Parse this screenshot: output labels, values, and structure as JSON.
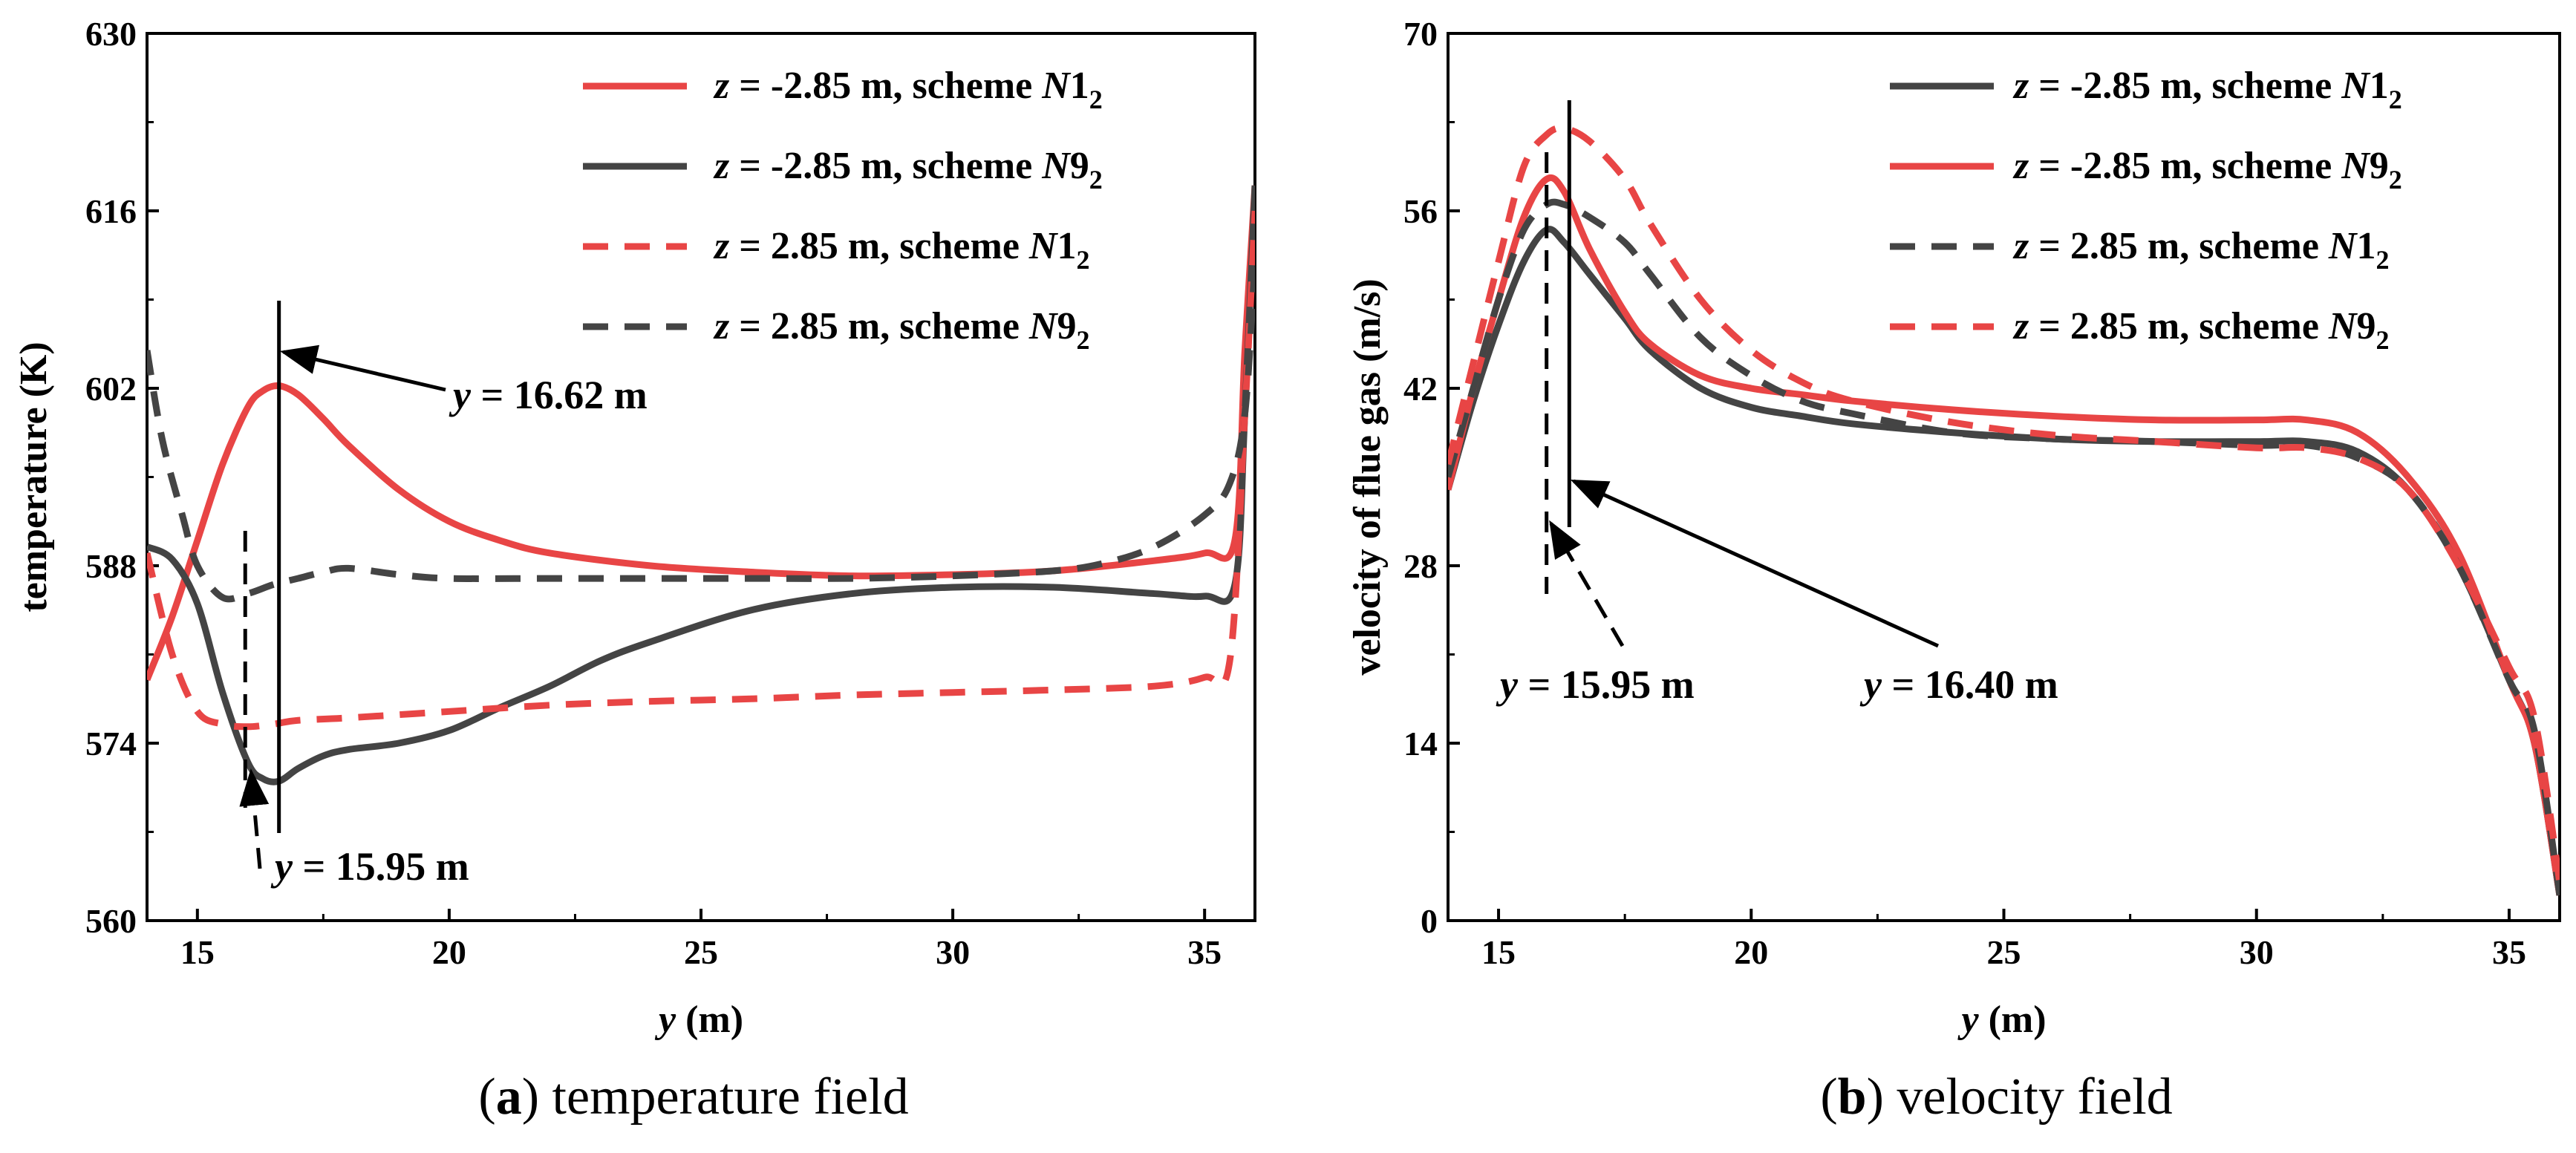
{
  "colors": {
    "red": "#e84545",
    "dark": "#444444",
    "axis": "#000000"
  },
  "chart_data": [
    {
      "type": "line",
      "caption": {
        "letter": "(a)",
        "text": " temperature field"
      },
      "xlabel": {
        "var": "y",
        "unit": "(m)"
      },
      "ylabel": "temperature (K)",
      "xlim": [
        14,
        36
      ],
      "ylim": [
        560,
        630
      ],
      "xticks": [
        "15",
        "20",
        "25",
        "30",
        "35"
      ],
      "yticks": [
        "560",
        "574",
        "588",
        "602",
        "616",
        "630"
      ],
      "series": [
        {
          "name": "z = -2.85 m, scheme N1_2",
          "legend": {
            "var": "z",
            "prefix": " = -2.85 m, scheme ",
            "scheme": "N",
            "num": "1",
            "sub": "2"
          },
          "color": "#e84545",
          "dash": "solid",
          "x": [
            14,
            14.5,
            15,
            15.5,
            16,
            16.3,
            16.62,
            17,
            17.5,
            18,
            19,
            20,
            21,
            22,
            24,
            26,
            28,
            30,
            32,
            34,
            35,
            35.6,
            35.8,
            36
          ],
          "y": [
            579,
            584,
            590,
            596,
            600.5,
            601.8,
            602.2,
            601.5,
            599.6,
            597.5,
            594,
            591.5,
            590,
            589,
            588,
            587.5,
            587.2,
            587.3,
            587.6,
            588.4,
            589,
            590,
            605,
            618
          ]
        },
        {
          "name": "z = -2.85 m, scheme N9_2",
          "legend": {
            "var": "z",
            "prefix": " = -2.85 m, scheme ",
            "scheme": "N",
            "num": "9",
            "sub": "2"
          },
          "color": "#444444",
          "dash": "solid",
          "x": [
            14,
            14.5,
            15,
            15.5,
            16,
            16.3,
            16.62,
            17,
            17.5,
            18,
            19,
            20,
            21,
            22,
            23,
            24,
            26,
            28,
            30,
            32,
            34,
            35,
            35.6,
            35.8,
            36
          ],
          "y": [
            589.5,
            588.5,
            585,
            578,
            572.5,
            571.2,
            571,
            572,
            573,
            573.5,
            574,
            575,
            576.8,
            578.5,
            580.5,
            582,
            584.5,
            585.8,
            586.3,
            586.3,
            585.8,
            585.6,
            586.5,
            600,
            618
          ]
        },
        {
          "name": "z = 2.85 m, scheme N1_2",
          "legend": {
            "var": "z",
            "prefix": " = 2.85 m, scheme ",
            "scheme": "N",
            "num": "1",
            "sub": "2"
          },
          "color": "#e84545",
          "dash": "dashed",
          "x": [
            14,
            14.5,
            15,
            15.5,
            16,
            16.5,
            17,
            18,
            20,
            22,
            24,
            26,
            28,
            30,
            32,
            34,
            35,
            35.5,
            35.8,
            36
          ],
          "y": [
            589,
            581,
            576.5,
            575.5,
            575.3,
            575.5,
            575.8,
            576,
            576.5,
            577,
            577.3,
            577.5,
            577.8,
            578,
            578.2,
            578.5,
            579.2,
            580.5,
            600,
            616
          ]
        },
        {
          "name": "z = 2.85 m, scheme N9_2",
          "legend": {
            "var": "z",
            "prefix": " = 2.85 m, scheme ",
            "scheme": "N",
            "num": "9",
            "sub": "2"
          },
          "color": "#444444",
          "dash": "dashed",
          "x": [
            14,
            14.3,
            14.7,
            15,
            15.5,
            16,
            16.5,
            17,
            17.5,
            18,
            19,
            20,
            22,
            24,
            26,
            28,
            30,
            32,
            33,
            34,
            35,
            35.5,
            35.8,
            36
          ],
          "y": [
            605,
            598,
            592,
            588,
            585.5,
            585.8,
            586.5,
            587,
            587.5,
            587.8,
            587.3,
            587,
            587,
            587,
            587,
            587,
            587.2,
            587.6,
            588.2,
            589.5,
            592,
            594.5,
            600,
            612
          ]
        }
      ],
      "annotations": [
        {
          "var": "y",
          "text": " = 16.62 m",
          "x": 16.62
        },
        {
          "var": "y",
          "text": " = 15.95 m",
          "x": 15.95
        }
      ]
    },
    {
      "type": "line",
      "caption": {
        "letter": "(b)",
        "text": " velocity field"
      },
      "xlabel": {
        "var": "y",
        "unit": "(m)"
      },
      "ylabel": "velocity of flue gas  (m/s)",
      "xlim": [
        14,
        36
      ],
      "ylim": [
        0,
        70
      ],
      "xticks": [
        "15",
        "20",
        "25",
        "30",
        "35"
      ],
      "yticks": [
        "0",
        "14",
        "28",
        "42",
        "56",
        "70"
      ],
      "series": [
        {
          "name": "z = -2.85 m, scheme N1_2",
          "legend": {
            "var": "z",
            "prefix": " = -2.85 m, scheme ",
            "scheme": "N",
            "num": "1",
            "sub": "2"
          },
          "color": "#444444",
          "dash": "solid",
          "x": [
            14,
            14.5,
            15,
            15.5,
            15.95,
            16.3,
            16.8,
            17.5,
            18,
            19,
            20,
            21,
            22,
            24,
            26,
            28,
            30,
            31,
            32,
            33,
            34,
            35,
            35.5,
            36
          ],
          "y": [
            34,
            41,
            47,
            52,
            54.5,
            53.5,
            51,
            47.5,
            45,
            42,
            40.5,
            39.8,
            39.2,
            38.5,
            38,
            37.8,
            37.8,
            37.8,
            37,
            34,
            28,
            19,
            14,
            2
          ]
        },
        {
          "name": "z = -2.85 m, scheme N9_2",
          "legend": {
            "var": "z",
            "prefix": " = -2.85 m, scheme ",
            "scheme": "N",
            "num": "9",
            "sub": "2"
          },
          "color": "#e84545",
          "dash": "solid",
          "x": [
            14,
            14.5,
            15,
            15.5,
            15.95,
            16.3,
            16.8,
            17.5,
            18,
            19,
            20,
            21,
            22,
            24,
            26,
            28,
            30,
            31,
            32,
            33,
            34,
            35,
            35.5,
            36
          ],
          "y": [
            34,
            42,
            49,
            55.5,
            58.5,
            57.5,
            53,
            48,
            45.5,
            43,
            42,
            41.5,
            41,
            40.3,
            39.8,
            39.5,
            39.5,
            39.5,
            38.5,
            35,
            29,
            19,
            14,
            2
          ]
        },
        {
          "name": "z = 2.85 m, scheme N1_2",
          "legend": {
            "var": "z",
            "prefix": " = 2.85 m, scheme ",
            "scheme": "N",
            "num": "1",
            "sub": "2"
          },
          "color": "#444444",
          "dash": "dashed",
          "x": [
            14,
            14.5,
            15,
            15.5,
            15.95,
            16.3,
            16.8,
            17.5,
            18,
            19,
            20,
            21,
            22,
            24,
            26,
            28,
            30,
            31,
            32,
            33,
            34,
            35,
            35.5,
            36
          ],
          "y": [
            35,
            42,
            49,
            54.5,
            56.5,
            56.5,
            55.5,
            53.5,
            51,
            46,
            43,
            41,
            40,
            38.5,
            38,
            37.8,
            37.5,
            37.5,
            36.5,
            34,
            28,
            19,
            15,
            2
          ]
        },
        {
          "name": "z = 2.85 m, scheme N9_2",
          "legend": {
            "var": "z",
            "prefix": " = 2.85 m, scheme ",
            "scheme": "N",
            "num": "9",
            "sub": "2"
          },
          "color": "#e84545",
          "dash": "dashed",
          "x": [
            14,
            14.5,
            15,
            15.5,
            15.95,
            16.3,
            16.8,
            17.5,
            18,
            19,
            20,
            21,
            22,
            24,
            26,
            28,
            30,
            31,
            32,
            33,
            34,
            35,
            35.5,
            36
          ],
          "y": [
            36,
            44,
            52,
            59.5,
            62,
            62.5,
            61.5,
            58.5,
            55,
            49,
            45,
            42.5,
            41,
            39.3,
            38.3,
            37.8,
            37.3,
            37.3,
            36.5,
            34,
            28,
            20,
            16,
            3
          ]
        }
      ],
      "annotations": [
        {
          "var": "y",
          "text": " = 15.95 m",
          "x": 15.95
        },
        {
          "var": "y",
          "text": " = 16.40 m",
          "x": 16.4
        }
      ]
    }
  ]
}
